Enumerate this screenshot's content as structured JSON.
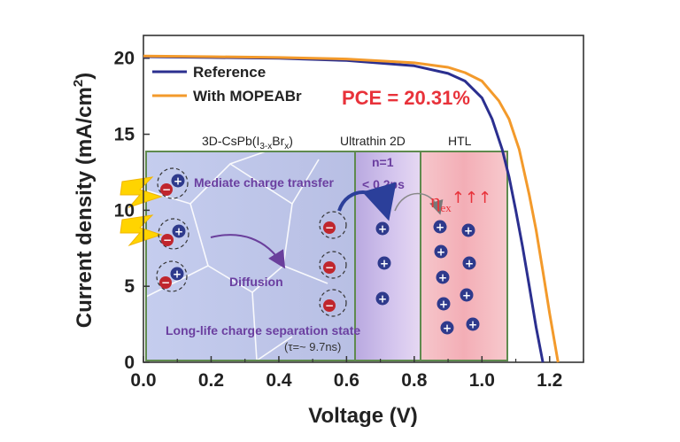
{
  "chart_data": {
    "type": "line",
    "xlabel": "Voltage (V)",
    "ylabel": "Current density (mA/cm",
    "ylabel_sup": "2",
    "ylabel_close": ")",
    "xlim": [
      0.0,
      1.3
    ],
    "ylim": [
      0,
      21.5
    ],
    "x_ticks": [
      "0.0",
      "0.2",
      "0.4",
      "0.6",
      "0.8",
      "1.0",
      "1.2"
    ],
    "y_ticks": [
      "0",
      "5",
      "10",
      "15",
      "20"
    ],
    "legend": {
      "placement": "top-left"
    },
    "series": [
      {
        "name": "Reference",
        "color": "#2b2f8f",
        "x": [
          0.0,
          0.2,
          0.4,
          0.6,
          0.8,
          0.9,
          0.95,
          1.0,
          1.03,
          1.06,
          1.08,
          1.1,
          1.12,
          1.14,
          1.16,
          1.18
        ],
        "y": [
          20.1,
          20.05,
          20.0,
          19.85,
          19.5,
          19.0,
          18.5,
          17.4,
          16.0,
          14.0,
          12.2,
          10.0,
          7.6,
          5.0,
          2.3,
          0.0
        ]
      },
      {
        "name": "With MOPEABr",
        "color": "#f39a2b",
        "x": [
          0.0,
          0.2,
          0.4,
          0.6,
          0.8,
          0.9,
          0.95,
          1.0,
          1.05,
          1.08,
          1.11,
          1.14,
          1.16,
          1.18,
          1.2,
          1.225
        ],
        "y": [
          20.15,
          20.1,
          20.05,
          19.95,
          19.7,
          19.4,
          19.05,
          18.5,
          17.2,
          16.0,
          14.0,
          11.0,
          8.7,
          6.0,
          3.2,
          0.0
        ]
      }
    ],
    "annotation": "PCE = 20.31%",
    "inset": {
      "region_3d": "3D-CsPb(I",
      "region_3d_sub": "3-x",
      "region_3d_br": "Br",
      "region_3d_sub2": "x",
      "region_3d_close": ")",
      "region_2d": "Ultrathin 2D",
      "region_htl": "HTL",
      "mediate": "Mediate charge transfer",
      "diffusion": "Diffusion",
      "long_life": "Long-life charge separation state",
      "tau": "(τ=~ 9.7ns)",
      "n1": "n=1",
      "lt": "< 0.2ps",
      "eta": "η",
      "eta_sub": "ex",
      "arrows": "↑↑↑",
      "plus": "+",
      "minus": "−"
    },
    "colors": {
      "inset_3d_bg": "#b9c3e6",
      "inset_2d_bg": "#c9b7e6",
      "inset_htl_bg": "#f5b9be",
      "inset_border": "#5f8a4e",
      "hole": "#2e3a8c",
      "electron": "#c0262d",
      "lightning": "#ffd400"
    }
  }
}
